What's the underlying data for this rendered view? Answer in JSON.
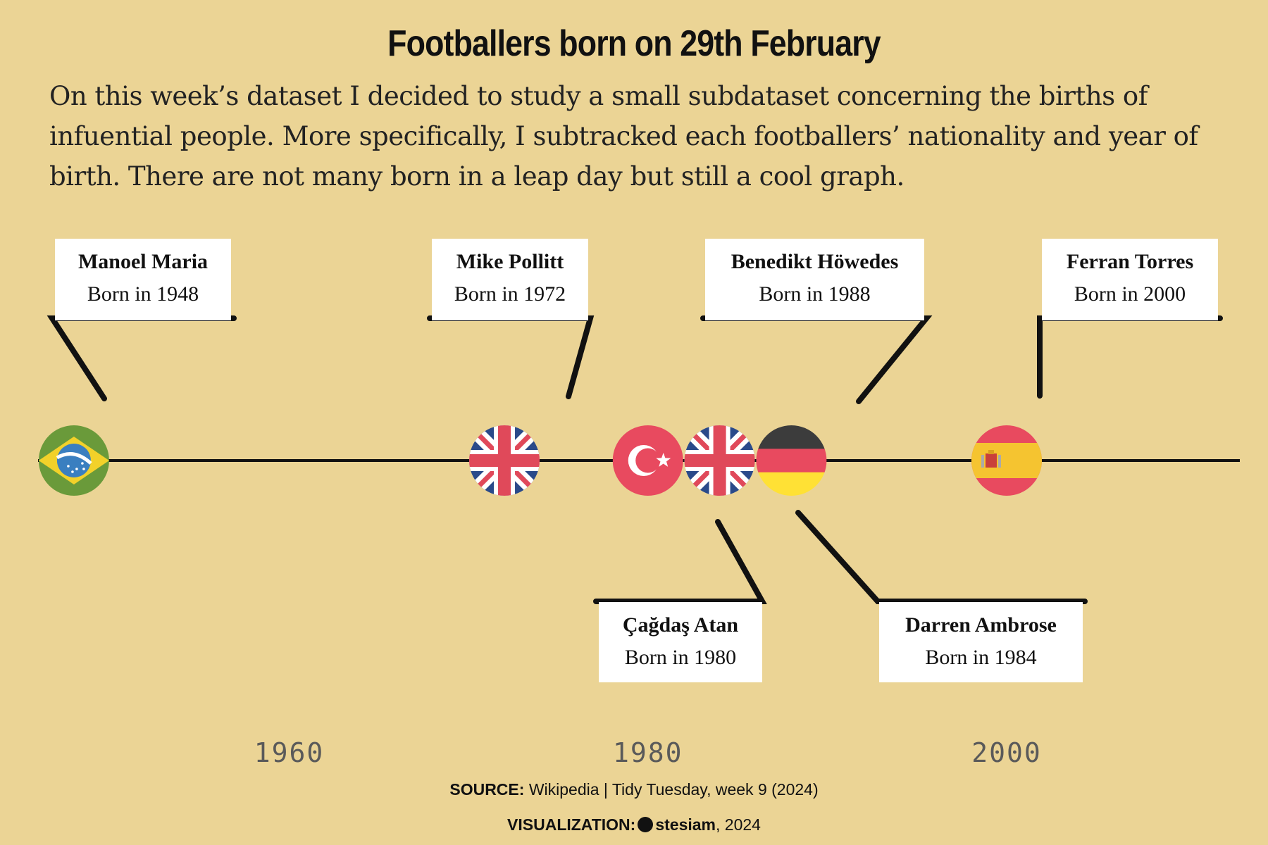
{
  "title": "Footballers born on 29th February",
  "subtitle": "On this week’s dataset I decided to study a small subdataset concerning the births of infuential people. More specifically, I subtracked each footballers’ nationality and year of birth. There are not many born in a leap day but still a cool graph.",
  "chart_data": {
    "type": "timeline",
    "x_ticks": [
      1960,
      1980,
      2000
    ],
    "x_tick_labels": [
      "1960",
      "1980",
      "2000"
    ],
    "xlim": [
      1946,
      2013
    ],
    "players": [
      {
        "name": "Manoel Maria",
        "year": 1948,
        "label": "Born in 1948",
        "country": "Brazil",
        "flag": "brazil-flag-icon",
        "label_side": "above"
      },
      {
        "name": "Mike Pollitt",
        "year": 1972,
        "label": "Born in 1972",
        "country": "United Kingdom",
        "flag": "uk-flag-icon",
        "label_side": "above"
      },
      {
        "name": "Çağdaş Atan",
        "year": 1980,
        "label": "Born in 1980",
        "country": "Turkey",
        "flag": "turkey-flag-icon",
        "label_side": "below"
      },
      {
        "name": "Darren Ambrose",
        "year": 1984,
        "label": "Born in 1984",
        "country": "United Kingdom",
        "flag": "uk-flag-icon",
        "label_side": "below"
      },
      {
        "name": "Benedikt Höwedes",
        "year": 1988,
        "label": "Born in 1988",
        "country": "Germany",
        "flag": "germany-flag-icon",
        "label_side": "above"
      },
      {
        "name": "Ferran Torres",
        "year": 2000,
        "label": "Born in 2000",
        "country": "Spain",
        "flag": "spain-flag-icon",
        "label_side": "above"
      }
    ],
    "colors": {
      "background": "#ebd495",
      "axis_line": "#111111",
      "tick_label": "#5a5a5a",
      "label_box": "#ffffff"
    }
  },
  "footer": {
    "source_label": "SOURCE:",
    "source_text": "Wikipedia | Tidy Tuesday, week 9 (2024)",
    "viz_label": "VISUALIZATION:",
    "viz_user": "stesiam",
    "viz_year": ", 2024"
  }
}
